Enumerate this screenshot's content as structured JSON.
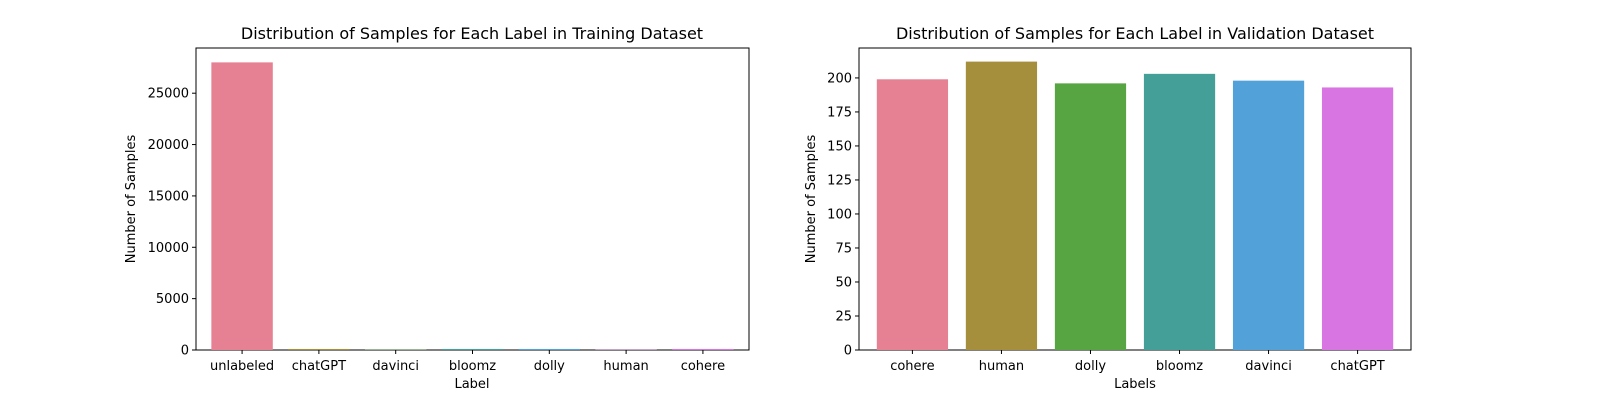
{
  "chart_data": [
    {
      "type": "bar",
      "title": "Distribution of Samples for Each Label in Training Dataset",
      "xlabel": "Label",
      "ylabel": "Number of Samples",
      "categories": [
        "unlabeled",
        "chatGPT",
        "davinci",
        "bloomz",
        "dolly",
        "human",
        "cohere"
      ],
      "values": [
        28000,
        100,
        30,
        100,
        100,
        30,
        100
      ],
      "colors": [
        "#e68193",
        "#a58f3c",
        "#5aa846",
        "#45a09a",
        "#52a1d9",
        "#d875e3",
        "#d875e3"
      ],
      "ylim": [
        0,
        29400
      ],
      "yticks": [
        0,
        5000,
        10000,
        15000,
        20000,
        25000
      ],
      "grid": false,
      "legend": "none"
    },
    {
      "type": "bar",
      "title": "Distribution of Samples for Each Label in Validation Dataset",
      "xlabel": "Labels",
      "ylabel": "Number of Samples",
      "categories": [
        "cohere",
        "human",
        "dolly",
        "bloomz",
        "davinci",
        "chatGPT"
      ],
      "values": [
        199,
        212,
        196,
        203,
        198,
        193
      ],
      "colors": [
        "#e68193",
        "#a58f3c",
        "#57a442",
        "#459f99",
        "#52a1d9",
        "#d875e3"
      ],
      "ylim": [
        0,
        222
      ],
      "yticks": [
        0,
        25,
        50,
        75,
        100,
        125,
        150,
        175,
        200
      ],
      "grid": false,
      "legend": "none"
    }
  ]
}
